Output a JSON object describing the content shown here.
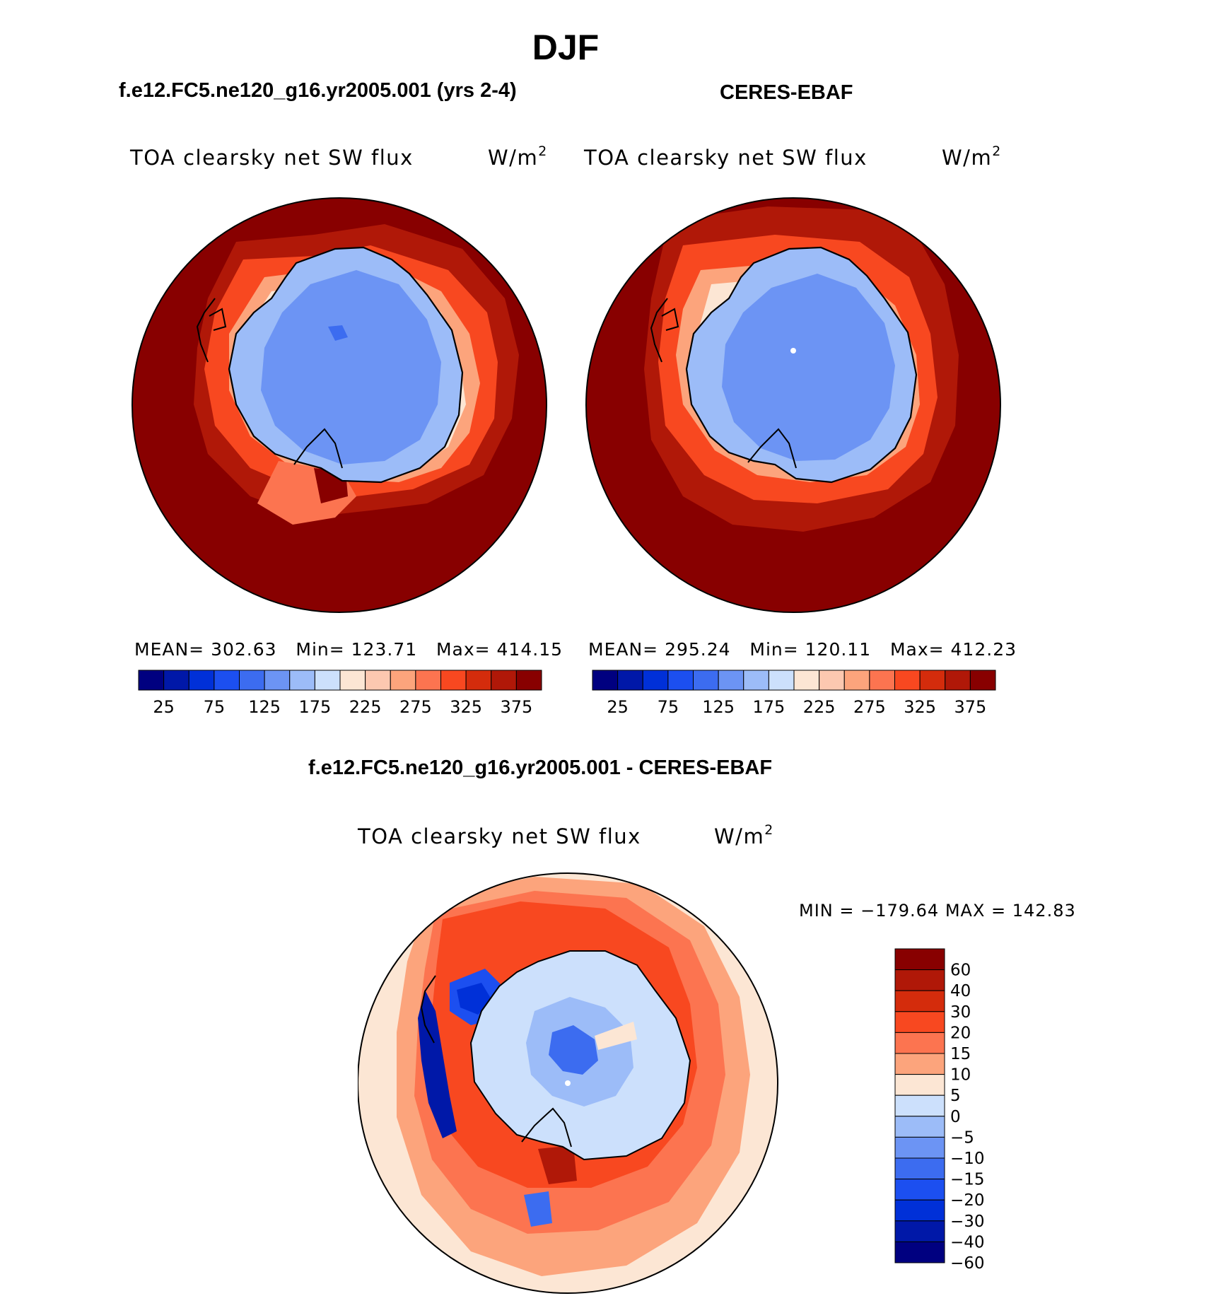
{
  "page": {
    "season": "DJF",
    "model_title": "f.e12.FC5.ne120_g16.yr2005.001 (yrs 2-4)",
    "obs_title": "CERES-EBAF",
    "diff_title": "f.e12.FC5.ne120_g16.yr2005.001 - CERES-EBAF"
  },
  "panels": {
    "model": {
      "variable": "TOA clearsky net SW flux",
      "units_base": "W/m",
      "units_exp": "2",
      "stats": "MEAN= 302.63   Min= 123.71   Max= 414.15"
    },
    "obs": {
      "variable": "TOA clearsky net SW flux",
      "units_base": "W/m",
      "units_exp": "2",
      "stats": "MEAN= 295.24   Min= 120.11   Max= 412.23"
    },
    "diff": {
      "variable": "TOA clearsky net SW flux",
      "units_base": "W/m",
      "units_exp": "2",
      "stats": "MIN = −179.64 MAX = 142.83"
    }
  },
  "abs_colorbar": {
    "colors": [
      "#000080",
      "#0018a8",
      "#0030d8",
      "#1c4ff0",
      "#3c6cf0",
      "#6c94f4",
      "#9cbcf8",
      "#cce0fc",
      "#fce6d4",
      "#fcc8b0",
      "#fca47c",
      "#fc7450",
      "#f84820",
      "#d42c0c",
      "#b01808",
      "#880000"
    ],
    "labels": [
      "25",
      "75",
      "125",
      "175",
      "225",
      "275",
      "325",
      "375"
    ]
  },
  "diff_colorbar": {
    "colors": [
      "#880000",
      "#b01808",
      "#d42c0c",
      "#f84820",
      "#fc7450",
      "#fca47c",
      "#fce6d4",
      "#cce0fc",
      "#9cbcf8",
      "#6c94f4",
      "#3c6cf0",
      "#1c4ff0",
      "#0030d8",
      "#0018a8",
      "#000080"
    ],
    "labels": [
      "60",
      "40",
      "30",
      "20",
      "15",
      "10",
      "5",
      "0",
      "−5",
      "−10",
      "−15",
      "−20",
      "−30",
      "−40",
      "−60"
    ]
  }
}
